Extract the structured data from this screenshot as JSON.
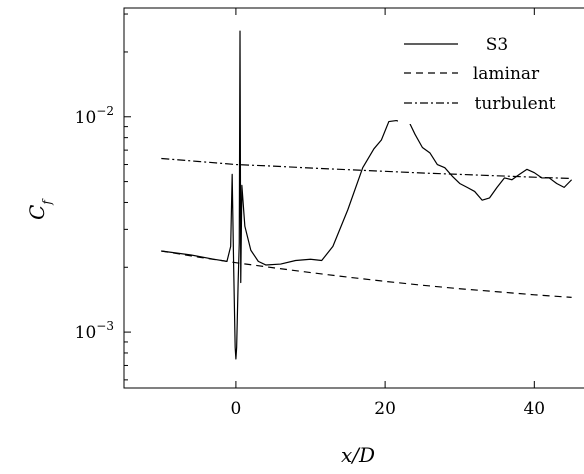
{
  "chart_data": {
    "type": "line",
    "title": "",
    "xlabel": "x/D",
    "ylabel": "C_f",
    "xlim": [
      -15,
      48
    ],
    "ylim": [
      0.00055,
      0.032
    ],
    "yscale": "log",
    "xticks": [
      0,
      20,
      40
    ],
    "xtick_labels": [
      "0",
      "20",
      "40"
    ],
    "ytick_labels": [
      {
        "value": 0.01,
        "base": "10",
        "exp": "−2"
      },
      {
        "value": 0.001,
        "base": "10",
        "exp": "−3"
      }
    ],
    "grid": false,
    "legend_position": "top-right",
    "series": [
      {
        "name": "S3",
        "style": "solid",
        "x": [
          -10,
          -6,
          -3,
          -1.2,
          -0.7,
          -0.5,
          -0.3,
          -0.1,
          0,
          0.1,
          0.3,
          0.45,
          0.55,
          0.65,
          0.8,
          1.2,
          2,
          3,
          4,
          6,
          8,
          10,
          11.5,
          13,
          15,
          17,
          18.5,
          19.5,
          20.5,
          21.5,
          22.5,
          23,
          24,
          25,
          26,
          27,
          28,
          29,
          30,
          31,
          32,
          33,
          34,
          35,
          36,
          37,
          38,
          39,
          40,
          41,
          42,
          43,
          44,
          45
        ],
        "y": [
          0.00238,
          0.00228,
          0.00218,
          0.00213,
          0.0025,
          0.0054,
          0.002,
          0.00085,
          0.00075,
          0.00085,
          0.0017,
          0.0026,
          0.025,
          0.0017,
          0.0048,
          0.0031,
          0.0024,
          0.00213,
          0.00205,
          0.00207,
          0.00215,
          0.00218,
          0.00215,
          0.0025,
          0.0037,
          0.0058,
          0.0071,
          0.0078,
          0.0095,
          0.0096,
          0.0094,
          0.0098,
          0.0083,
          0.0072,
          0.0068,
          0.006,
          0.0058,
          0.0053,
          0.0049,
          0.0047,
          0.0045,
          0.0041,
          0.0042,
          0.0047,
          0.0052,
          0.0051,
          0.0054,
          0.0057,
          0.0055,
          0.0052,
          0.0052,
          0.0049,
          0.0047,
          0.0051
        ]
      },
      {
        "name": "laminar",
        "style": "dashed",
        "x": [
          -10,
          -5,
          0,
          5,
          10,
          15,
          20,
          25,
          30,
          35,
          40,
          45
        ],
        "y": [
          0.00238,
          0.00223,
          0.0021,
          0.00199,
          0.00189,
          0.0018,
          0.00172,
          0.00165,
          0.00159,
          0.00154,
          0.00149,
          0.00145
        ]
      },
      {
        "name": "turbulent",
        "style": "dashdot",
        "x": [
          -10,
          -5,
          0,
          5,
          10,
          15,
          20,
          25,
          30,
          35,
          40,
          45
        ],
        "y": [
          0.0064,
          0.0062,
          0.006,
          0.0059,
          0.00578,
          0.00568,
          0.00558,
          0.00548,
          0.0054,
          0.00532,
          0.00524,
          0.00517
        ]
      }
    ]
  }
}
